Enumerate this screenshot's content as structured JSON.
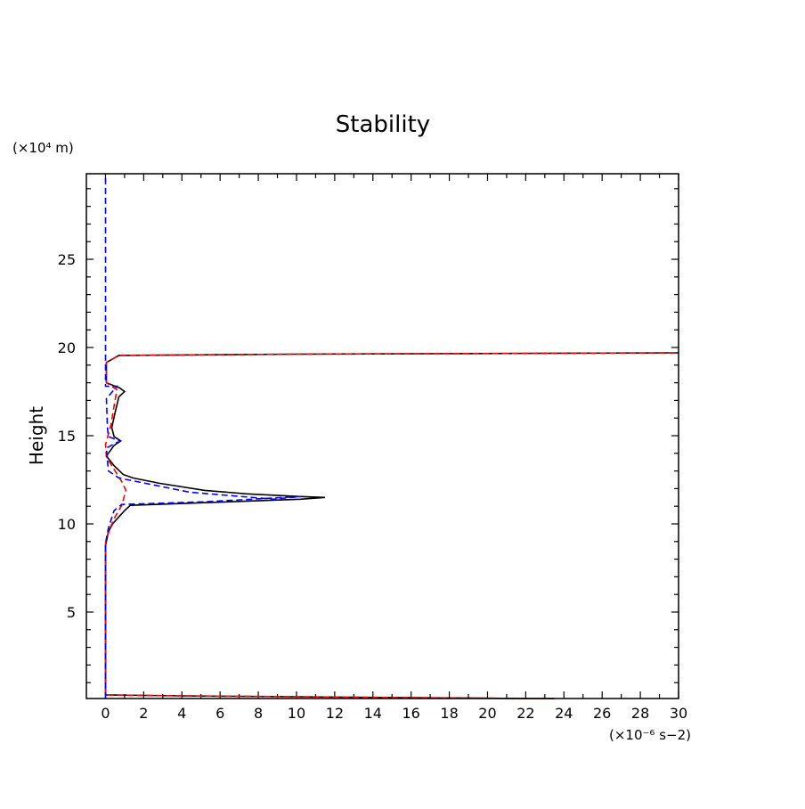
{
  "chart_data": {
    "type": "line",
    "title": "Stability",
    "xlabel": "",
    "ylabel": "Height",
    "x_unit": "(×10⁻⁶ s−2)",
    "y_unit": "(×10⁴ m)",
    "xlim": [
      -1,
      30
    ],
    "ylim": [
      0.1,
      29.85
    ],
    "xticks": [
      0,
      2,
      4,
      6,
      8,
      10,
      12,
      14,
      16,
      18,
      20,
      22,
      24,
      26,
      28,
      30
    ],
    "yticks": [
      5,
      10,
      15,
      20,
      25
    ],
    "grid": false,
    "series": [
      {
        "name": "black-solid",
        "color": "#000000",
        "dash": "solid",
        "points": [
          [
            23.5,
            0.1
          ],
          [
            22,
            0.1
          ],
          [
            16,
            0.15
          ],
          [
            10,
            0.2
          ],
          [
            4,
            0.25
          ],
          [
            0,
            0.3
          ],
          [
            0,
            8.75
          ],
          [
            0.15,
            9.55
          ],
          [
            0.37,
            10.0
          ],
          [
            1.0,
            10.75
          ],
          [
            1.3,
            11.05
          ],
          [
            5.2,
            11.2
          ],
          [
            10.2,
            11.4
          ],
          [
            11.5,
            11.5
          ],
          [
            10.2,
            11.55
          ],
          [
            7.4,
            11.7
          ],
          [
            5.2,
            11.9
          ],
          [
            2.85,
            12.3
          ],
          [
            1.45,
            12.6
          ],
          [
            0.93,
            12.8
          ],
          [
            0.45,
            13.3
          ],
          [
            0.05,
            13.85
          ],
          [
            0.45,
            14.45
          ],
          [
            0.8,
            14.7
          ],
          [
            0.45,
            14.95
          ],
          [
            0.33,
            15.45
          ],
          [
            0.5,
            16.3
          ],
          [
            0.7,
            17.2
          ],
          [
            1.0,
            17.5
          ],
          [
            0.75,
            17.7
          ],
          [
            0.05,
            18.0
          ],
          [
            0.05,
            19.15
          ],
          [
            0.7,
            19.55
          ],
          [
            10,
            19.62
          ],
          [
            30,
            19.7
          ]
        ]
      },
      {
        "name": "red-dashed",
        "color": "#ff0000",
        "dash": "dashed",
        "points": [
          [
            23.5,
            0.1
          ],
          [
            22,
            0.1
          ],
          [
            16,
            0.15
          ],
          [
            10,
            0.2
          ],
          [
            4,
            0.25
          ],
          [
            0,
            0.3
          ],
          [
            0,
            8.9
          ],
          [
            0.23,
            9.75
          ],
          [
            0.5,
            10.4
          ],
          [
            0.85,
            11.05
          ],
          [
            1.07,
            11.9
          ],
          [
            0.85,
            12.4
          ],
          [
            0.5,
            13.0
          ],
          [
            0.05,
            13.8
          ],
          [
            0,
            14.5
          ],
          [
            0.28,
            15.6
          ],
          [
            0.5,
            17.0
          ],
          [
            0.6,
            17.6
          ],
          [
            0.05,
            18.0
          ],
          [
            0.05,
            19.15
          ],
          [
            0.7,
            19.55
          ],
          [
            10,
            19.62
          ],
          [
            30,
            19.7
          ]
        ]
      },
      {
        "name": "blue-dashed",
        "color": "#0000ff",
        "dash": "dashed",
        "points": [
          [
            0,
            0.1
          ],
          [
            0,
            8.9
          ],
          [
            0.15,
            9.75
          ],
          [
            0.45,
            10.75
          ],
          [
            0.85,
            11.1
          ],
          [
            5.2,
            11.25
          ],
          [
            10.2,
            11.55
          ],
          [
            8.8,
            11.4
          ],
          [
            4.4,
            11.8
          ],
          [
            2.1,
            12.3
          ],
          [
            0.7,
            12.6
          ],
          [
            0.15,
            13.0
          ],
          [
            0.05,
            14.3
          ],
          [
            0.75,
            14.7
          ],
          [
            0.15,
            14.95
          ],
          [
            0.1,
            15.5
          ],
          [
            0.05,
            17.1
          ],
          [
            0.6,
            17.8
          ],
          [
            0.0,
            17.8
          ],
          [
            0,
            19.3
          ],
          [
            0,
            29.85
          ]
        ]
      }
    ]
  }
}
